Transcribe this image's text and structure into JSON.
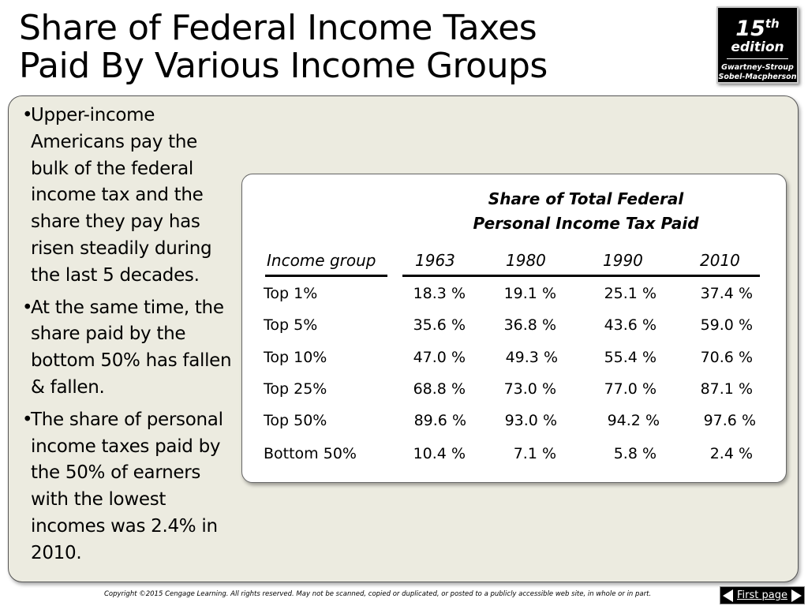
{
  "slide": {
    "title_line1": "Share of Federal Income Taxes",
    "title_line2": "Paid By Various Income Groups"
  },
  "edition_badge": {
    "number": "15",
    "suffix": "th",
    "word": "edition",
    "authors_line1": "Gwartney-Stroup",
    "authors_line2": "Sobel-Macpherson"
  },
  "bullets": [
    "Upper-income Americans pay the bulk of the federal income tax and the share they pay has risen steadily during the last 5 decades.",
    "At the same time, the share paid by the bottom 50% has fallen & fallen.",
    "The share of personal income taxes paid by the 50% of earners with the lowest incomes was 2.4% in 2010."
  ],
  "bullet_symbol": "•",
  "table": {
    "heading_line1": "Share of Total Federal",
    "heading_line2": "Personal Income Tax Paid",
    "row_header": "Income group",
    "years": [
      "1963",
      "1980",
      "1990",
      "2010"
    ],
    "rows": [
      {
        "group": "Top 1%",
        "values": [
          "18.3 %",
          "19.1 %",
          "25.1 %",
          "37.4 %"
        ]
      },
      {
        "group": "Top 5%",
        "values": [
          "35.6 %",
          "36.8 %",
          "43.6 %",
          "59.0 %"
        ]
      },
      {
        "group": "Top 10%",
        "values": [
          "47.0 %",
          "49.3 %",
          "55.4 %",
          "70.6 %"
        ]
      },
      {
        "group": "Top 25%",
        "values": [
          "68.8 %",
          "73.0 %",
          "77.0 %",
          "87.1 %"
        ]
      },
      {
        "group": "Top 50%",
        "values": [
          "89.6 %",
          "93.0 %",
          "94.2 %",
          "97.6 %"
        ]
      },
      {
        "group": "Bottom 50%",
        "values": [
          "10.4 %",
          "7.1 %",
          "5.8 %",
          "2.4 %"
        ]
      }
    ]
  },
  "footer": {
    "copyright": "Copyright ©2015 Cengage Learning. All rights reserved. May not be scanned, copied or duplicated, or posted to a publicly accessible web site, in whole or in part.",
    "first_page_label": "First page"
  },
  "colors": {
    "panel_background": "#ecebe0",
    "badge_background": "#000000",
    "table_background": "#ffffff"
  }
}
